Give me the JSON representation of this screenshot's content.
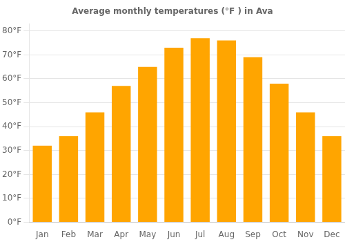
{
  "chart_data": {
    "type": "bar",
    "title": "Average monthly temperatures (°F ) in Ava",
    "categories": [
      "Jan",
      "Feb",
      "Mar",
      "Apr",
      "May",
      "Jun",
      "Jul",
      "Aug",
      "Sep",
      "Oct",
      "Nov",
      "Dec"
    ],
    "values": [
      32,
      36,
      46,
      57,
      65,
      73,
      77,
      76,
      69,
      58,
      46,
      36
    ],
    "color": "#FFA500",
    "ylim": [
      0,
      83
    ],
    "yticks": [
      {
        "value": 0,
        "label": "0°F"
      },
      {
        "value": 10,
        "label": "10°F"
      },
      {
        "value": 20,
        "label": "20°F"
      },
      {
        "value": 30,
        "label": "30°F"
      },
      {
        "value": 40,
        "label": "40°F"
      },
      {
        "value": 50,
        "label": "50°F"
      },
      {
        "value": 60,
        "label": "60°F"
      },
      {
        "value": 70,
        "label": "70°F"
      },
      {
        "value": 80,
        "label": "80°F"
      }
    ],
    "grid": true
  }
}
